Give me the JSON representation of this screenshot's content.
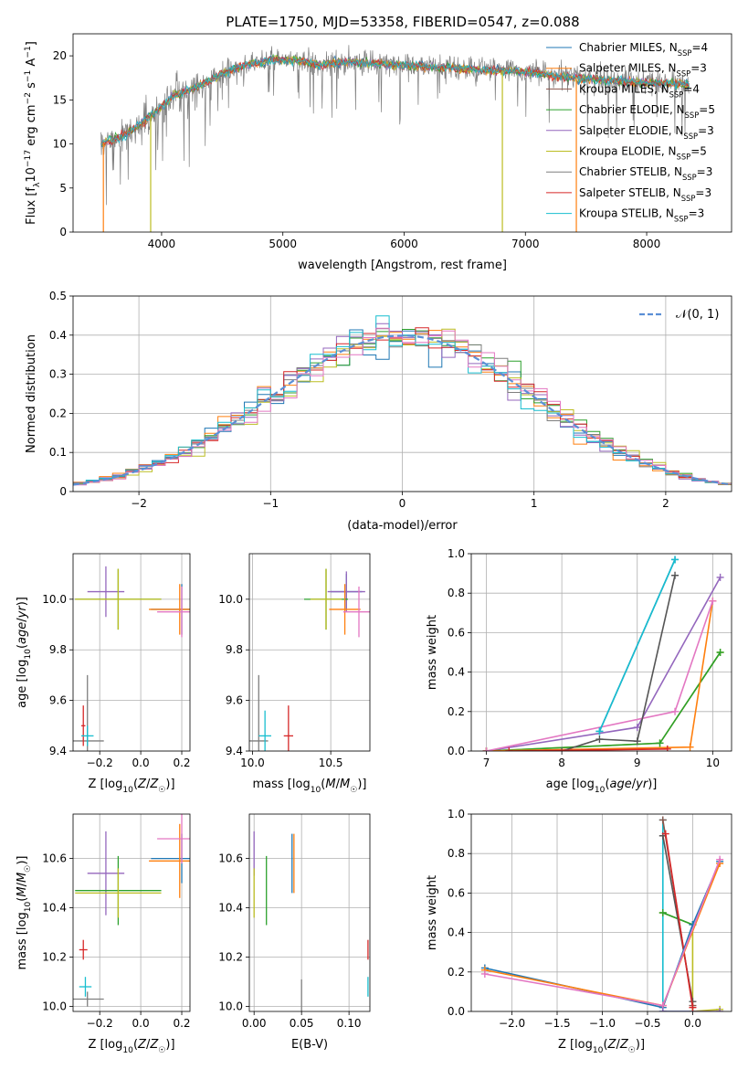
{
  "figure": {
    "title": "PLATE=1750, MJD=53358, FIBERID=0547, z=0.088",
    "colors": [
      "#1f77b4",
      "#ff7f0e",
      "#2ca02c",
      "#d62728",
      "#9467bd",
      "#8c564b",
      "#e377c2",
      "#7f7f7f",
      "#bcbd22",
      "#17becf"
    ]
  },
  "chart_data": [
    {
      "id": "spectrum",
      "type": "line",
      "title": "PLATE=1750, MJD=53358, FIBERID=0547, z=0.088",
      "xlabel": "wavelength [Angstrom, rest frame]",
      "ylabel": "Flux [f_λ 10^-17 erg cm^-2 s^-1 A^-1]",
      "xlim": [
        3270,
        8700
      ],
      "ylim": [
        0,
        22.5
      ],
      "xticks": [
        4000,
        5000,
        6000,
        7000,
        8000
      ],
      "yticks": [
        0,
        5,
        10,
        15,
        20
      ],
      "grid": false,
      "legend_position": "top-right",
      "data_spectrum": {
        "x": [
          3500,
          3700,
          3900,
          4100,
          4300,
          4500,
          4700,
          4900,
          5100,
          5300,
          5500,
          5700,
          5900,
          6100,
          6300,
          6500,
          6700,
          6900,
          7100,
          7300,
          7500,
          7700,
          7900,
          8100,
          8300
        ],
        "y": [
          10,
          11,
          13,
          15.5,
          16.5,
          18,
          19,
          19.5,
          19.5,
          19,
          19.3,
          19.2,
          19,
          18.8,
          18.7,
          18.5,
          18.4,
          18.3,
          18,
          17.6,
          17.4,
          17.2,
          17,
          16.9,
          16.8
        ]
      },
      "model": {
        "x": [
          3500,
          3700,
          3900,
          4100,
          4300,
          4500,
          4700,
          4900,
          5100,
          5300,
          5500,
          5700,
          5900,
          6100,
          6300,
          6500,
          6700,
          6900,
          7100,
          7300,
          7500,
          7700,
          7900,
          8100,
          8300
        ],
        "y": [
          10,
          11,
          13,
          15.5,
          16.5,
          18,
          19,
          19.5,
          19.5,
          19,
          19.3,
          19.2,
          19,
          18.8,
          18.7,
          18.5,
          18.4,
          18.3,
          18,
          17.6,
          17.4,
          17.2,
          17,
          16.9,
          16.8
        ]
      },
      "series": [
        {
          "name": "Chabrier MILES, N_SSP=4",
          "color": "#1f77b4"
        },
        {
          "name": "Salpeter MILES, N_SSP=3",
          "color": "#ff7f0e"
        },
        {
          "name": "Kroupa MILES, N_SSP=4",
          "color": "#8c564b"
        },
        {
          "name": "Chabrier ELODIE, N_SSP=5",
          "color": "#2ca02c"
        },
        {
          "name": "Salpeter ELODIE, N_SSP=3",
          "color": "#9467bd"
        },
        {
          "name": "Kroupa ELODIE, N_SSP=5",
          "color": "#bcbd22"
        },
        {
          "name": "Chabrier STELIB, N_SSP=3",
          "color": "#7f7f7f"
        },
        {
          "name": "Salpeter STELIB, N_SSP=3",
          "color": "#d62728"
        },
        {
          "name": "Kroupa STELIB, N_SSP=3",
          "color": "#17becf"
        }
      ],
      "legend_text": [
        {
          "base": "Chabrier MILES, N",
          "sub": "SSP",
          "rest": "=4"
        },
        {
          "base": "Salpeter MILES, N",
          "sub": "SSP",
          "rest": "=3"
        },
        {
          "base": "Kroupa MILES, N",
          "sub": "SSP",
          "rest": "=4"
        },
        {
          "base": "Chabrier ELODIE, N",
          "sub": "SSP",
          "rest": "=5"
        },
        {
          "base": "Salpeter ELODIE, N",
          "sub": "SSP",
          "rest": "=3"
        },
        {
          "base": "Kroupa ELODIE, N",
          "sub": "SSP",
          "rest": "=5"
        },
        {
          "base": "Chabrier STELIB, N",
          "sub": "SSP",
          "rest": "=3"
        },
        {
          "base": "Salpeter STELIB, N",
          "sub": "SSP",
          "rest": "=3"
        },
        {
          "base": "Kroupa STELIB, N",
          "sub": "SSP",
          "rest": "=3"
        }
      ],
      "drops": [
        {
          "x": 3520,
          "color": "#ff7f0e"
        },
        {
          "x": 3910,
          "color": "#bcbd22"
        },
        {
          "x": 6810,
          "color": "#bcbd22"
        },
        {
          "x": 7420,
          "color": "#ff7f0e"
        }
      ]
    },
    {
      "id": "residuals",
      "type": "bar",
      "xlabel": "(data-model)/error",
      "ylabel": "Normed distribution",
      "xlim": [
        -2.5,
        2.5
      ],
      "ylim": [
        0,
        0.5
      ],
      "xticks": [
        -2,
        -1,
        0,
        1,
        2
      ],
      "yticks": [
        0.0,
        0.1,
        0.2,
        0.3,
        0.4,
        0.5
      ],
      "grid": true,
      "legend_position": "top-right",
      "legend_label": "𝒩(0, 1)",
      "bin_width": 0.1,
      "reference_color": "#5b8fd6",
      "series": [
        {
          "color": "#1f77b4",
          "offset": 0.02
        },
        {
          "color": "#ff7f0e",
          "offset": 0.05
        },
        {
          "color": "#2ca02c",
          "offset": -0.03
        },
        {
          "color": "#9467bd",
          "offset": 0.04
        },
        {
          "color": "#bcbd22",
          "offset": -0.05
        },
        {
          "color": "#7f7f7f",
          "offset": 0.01
        },
        {
          "color": "#d62728",
          "offset": -0.02
        },
        {
          "color": "#17becf",
          "offset": 0.03
        },
        {
          "color": "#e377c2",
          "offset": -0.04
        }
      ]
    },
    {
      "id": "age_vs_Z",
      "type": "scatter",
      "xlabel": "Z [log₁₀(Z/Z☉)]",
      "ylabel": "age [log₁₀(age/yr)]",
      "xlim": [
        -0.33,
        0.24
      ],
      "ylim": [
        9.4,
        10.18
      ],
      "xticks": [
        -0.2,
        0.0,
        0.2
      ],
      "xtick_labels": [
        "−0.2",
        "0.0",
        "0.2"
      ],
      "yticks": [
        9.4,
        9.6,
        9.8,
        10.0
      ],
      "ytick_labels": [
        "9.4",
        "9.6",
        "9.8",
        "10.0"
      ],
      "grid": true,
      "points": [
        {
          "color": "#9467bd",
          "x": -0.17,
          "y": 10.03,
          "xerr": 0.09,
          "yerr": 0.1
        },
        {
          "color": "#2ca02c",
          "x": -0.11,
          "y": 10.0,
          "xerr": 0.21,
          "yerr": 0.12
        },
        {
          "color": "#bcbd22",
          "x": -0.11,
          "y": 10.0,
          "xerr": 0.21,
          "yerr": 0.12
        },
        {
          "color": "#1f77b4",
          "x": 0.2,
          "y": 9.96,
          "xerr": 0.15,
          "yerr": 0.1
        },
        {
          "color": "#ff7f0e",
          "x": 0.19,
          "y": 9.96,
          "xerr": 0.15,
          "yerr": 0.1
        },
        {
          "color": "#e377c2",
          "x": 0.2,
          "y": 9.95,
          "xerr": 0.12,
          "yerr": 0.1
        },
        {
          "color": "#7f7f7f",
          "x": -0.26,
          "y": 9.44,
          "xerr": 0.08,
          "yerr": 0.26
        },
        {
          "color": "#d62728",
          "x": -0.28,
          "y": 9.5,
          "xerr": 0.01,
          "yerr": 0.08
        },
        {
          "color": "#17becf",
          "x": -0.26,
          "y": 9.46,
          "xerr": 0.03,
          "yerr": 0.04
        }
      ]
    },
    {
      "id": "age_vs_mass",
      "type": "scatter",
      "xlabel": "mass [log₁₀(M/M☉)]",
      "xlim": [
        9.98,
        10.75
      ],
      "ylim": [
        9.4,
        10.18
      ],
      "xticks": [
        10.0,
        10.5
      ],
      "xtick_labels": [
        "10.0",
        "10.5"
      ],
      "yticks": [
        9.4,
        9.6,
        9.8,
        10.0
      ],
      "ytick_labels": [
        "9.4",
        "9.6",
        "9.8",
        "10.0"
      ],
      "grid": true,
      "points": [
        {
          "color": "#1f77b4",
          "x": 10.6,
          "y": 10.03,
          "xerr": 0.1,
          "yerr": 0.07
        },
        {
          "color": "#9467bd",
          "x": 10.6,
          "y": 10.03,
          "xerr": 0.12,
          "yerr": 0.08
        },
        {
          "color": "#2ca02c",
          "x": 10.47,
          "y": 10.0,
          "xerr": 0.14,
          "yerr": 0.12
        },
        {
          "color": "#bcbd22",
          "x": 10.47,
          "y": 10.0,
          "xerr": 0.1,
          "yerr": 0.12
        },
        {
          "color": "#ff7f0e",
          "x": 10.59,
          "y": 9.96,
          "xerr": 0.1,
          "yerr": 0.1
        },
        {
          "color": "#e377c2",
          "x": 10.68,
          "y": 9.95,
          "xerr": 0.1,
          "yerr": 0.1
        },
        {
          "color": "#7f7f7f",
          "x": 10.04,
          "y": 9.44,
          "xerr": 0.06,
          "yerr": 0.26
        },
        {
          "color": "#d62728",
          "x": 10.23,
          "y": 9.46,
          "xerr": 0.03,
          "yerr": 0.12
        },
        {
          "color": "#17becf",
          "x": 10.08,
          "y": 9.46,
          "xerr": 0.04,
          "yerr": 0.1
        }
      ]
    },
    {
      "id": "mass_weight_vs_age",
      "type": "line",
      "xlabel": "age [log₁₀(age/yr)]",
      "ylabel": "mass weight",
      "xlim": [
        6.8,
        10.25
      ],
      "ylim": [
        0,
        1
      ],
      "xticks": [
        7,
        8,
        9,
        10
      ],
      "xtick_labels": [
        "7",
        "8",
        "9",
        "10"
      ],
      "yticks": [
        0.0,
        0.2,
        0.4,
        0.6,
        0.8,
        1.0
      ],
      "ytick_labels": [
        "0.0",
        "0.2",
        "0.4",
        "0.6",
        "0.8",
        "1.0"
      ],
      "grid": true,
      "series": [
        {
          "color": "#9467bd",
          "x": [
            7.0,
            9.0,
            10.1
          ],
          "y": [
            0.0,
            0.12,
            0.88
          ]
        },
        {
          "color": "#bcbd22",
          "x": [
            7.0,
            9.3,
            10.1
          ],
          "y": [
            0.0,
            0.04,
            0.5
          ]
        },
        {
          "color": "#2ca02c",
          "x": [
            7.0,
            9.3,
            10.1
          ],
          "y": [
            0.0,
            0.04,
            0.5
          ]
        },
        {
          "color": "#ff7f0e",
          "x": [
            7.0,
            9.7,
            10.0
          ],
          "y": [
            0.0,
            0.02,
            0.76
          ]
        },
        {
          "color": "#e377c2",
          "x": [
            7.0,
            9.5,
            10.0
          ],
          "y": [
            0.0,
            0.2,
            0.76
          ]
        },
        {
          "color": "#1f77b4",
          "x": [
            8.5,
            9.5
          ],
          "y": [
            0.1,
            0.97
          ]
        },
        {
          "color": "#17becf",
          "x": [
            8.5,
            9.5
          ],
          "y": [
            0.1,
            0.97
          ]
        },
        {
          "color": "#555555",
          "x": [
            8.0,
            8.5,
            9.0,
            9.5
          ],
          "y": [
            0.0,
            0.06,
            0.05,
            0.89
          ]
        },
        {
          "color": "#d62728",
          "x": [
            7.3,
            9.4
          ],
          "y": [
            0.0,
            0.01
          ]
        }
      ]
    },
    {
      "id": "mass_vs_Z",
      "type": "scatter",
      "xlabel": "Z [log₁₀(Z/Z☉)]",
      "ylabel": "mass [log₁₀(M/M☉)]",
      "xlim": [
        -0.33,
        0.24
      ],
      "ylim": [
        9.98,
        10.78
      ],
      "xticks": [
        -0.2,
        0.0,
        0.2
      ],
      "xtick_labels": [
        "−0.2",
        "0.0",
        "0.2"
      ],
      "yticks": [
        10.0,
        10.2,
        10.4,
        10.6
      ],
      "ytick_labels": [
        "10.0",
        "10.2",
        "10.4",
        "10.6"
      ],
      "grid": true,
      "points": [
        {
          "color": "#9467bd",
          "x": -0.17,
          "y": 10.54,
          "xerr": 0.09,
          "yerr": 0.17
        },
        {
          "color": "#2ca02c",
          "x": -0.11,
          "y": 10.47,
          "xerr": 0.21,
          "yerr": 0.14
        },
        {
          "color": "#bcbd22",
          "x": -0.11,
          "y": 10.46,
          "xerr": 0.21,
          "yerr": 0.1
        },
        {
          "color": "#1f77b4",
          "x": 0.2,
          "y": 10.6,
          "xerr": 0.15,
          "yerr": 0.1
        },
        {
          "color": "#ff7f0e",
          "x": 0.19,
          "y": 10.59,
          "xerr": 0.15,
          "yerr": 0.15
        },
        {
          "color": "#e377c2",
          "x": 0.2,
          "y": 10.68,
          "xerr": 0.12,
          "yerr": 0.1
        },
        {
          "color": "#7f7f7f",
          "x": -0.26,
          "y": 10.03,
          "xerr": 0.08,
          "yerr": 0.03
        },
        {
          "color": "#d62728",
          "x": -0.28,
          "y": 10.23,
          "xerr": 0.02,
          "yerr": 0.04
        },
        {
          "color": "#17becf",
          "x": -0.27,
          "y": 10.08,
          "xerr": 0.03,
          "yerr": 0.04
        }
      ]
    },
    {
      "id": "mass_vs_ebv",
      "type": "scatter",
      "xlabel": "E(B-V)",
      "xlim": [
        -0.005,
        0.122
      ],
      "ylim": [
        9.98,
        10.78
      ],
      "xticks": [
        0.0,
        0.05,
        0.1
      ],
      "xtick_labels": [
        "0.00",
        "0.05",
        "0.10"
      ],
      "yticks": [
        10.0,
        10.2,
        10.4,
        10.6
      ],
      "ytick_labels": [
        "10.0",
        "10.2",
        "10.4",
        "10.6"
      ],
      "grid": true,
      "points": [
        {
          "color": "#9467bd",
          "x": 0.0,
          "y": 10.62,
          "xerr": 0,
          "yerr": 0.09
        },
        {
          "color": "#bcbd22",
          "x": 0.0,
          "y": 10.46,
          "xerr": 0,
          "yerr": 0.1
        },
        {
          "color": "#2ca02c",
          "x": 0.013,
          "y": 10.47,
          "xerr": 0,
          "yerr": 0.14
        },
        {
          "color": "#1f77b4",
          "x": 0.04,
          "y": 10.58,
          "xerr": 0,
          "yerr": 0.12
        },
        {
          "color": "#ff7f0e",
          "x": 0.042,
          "y": 10.58,
          "xerr": 0,
          "yerr": 0.12
        },
        {
          "color": "#7f7f7f",
          "x": 0.05,
          "y": 10.03,
          "xerr": 0,
          "yerr": 0.08
        },
        {
          "color": "#d62728",
          "x": 0.12,
          "y": 10.23,
          "xerr": 0,
          "yerr": 0.04
        },
        {
          "color": "#17becf",
          "x": 0.12,
          "y": 10.08,
          "xerr": 0,
          "yerr": 0.04
        }
      ]
    },
    {
      "id": "mass_weight_vs_Z",
      "type": "line",
      "xlabel": "Z [log₁₀(Z/Z☉)]",
      "ylabel": "mass weight",
      "xlim": [
        -2.45,
        0.43
      ],
      "ylim": [
        0,
        1
      ],
      "xticks": [
        -2.0,
        -1.5,
        -1.0,
        -0.5,
        0.0
      ],
      "xtick_labels": [
        "−2.0",
        "−1.5",
        "−1.0",
        "−0.5",
        "0.0"
      ],
      "yticks": [
        0.0,
        0.2,
        0.4,
        0.6,
        0.8,
        1.0
      ],
      "ytick_labels": [
        "0.0",
        "0.2",
        "0.4",
        "0.6",
        "0.8",
        "1.0"
      ],
      "grid": true,
      "series": [
        {
          "color": "#17becf",
          "x": [
            -0.33,
            -0.33,
            0.0
          ],
          "y": [
            0.97,
            0.0,
            0.0
          ]
        },
        {
          "color": "#bcbd22",
          "x": [
            -0.33,
            0.0,
            0.0,
            0.3
          ],
          "y": [
            0.5,
            0.44,
            0.0,
            0.01
          ]
        },
        {
          "color": "#2ca02c",
          "x": [
            -0.33,
            0.0
          ],
          "y": [
            0.5,
            0.44
          ]
        },
        {
          "color": "#555555",
          "x": [
            -0.33,
            0.0
          ],
          "y": [
            0.89,
            0.05
          ]
        },
        {
          "color": "#8c564b",
          "x": [
            -0.33,
            0.0
          ],
          "y": [
            0.97,
            0.03
          ]
        },
        {
          "color": "#d62728",
          "x": [
            -0.3,
            0.0
          ],
          "y": [
            0.9,
            0.02
          ]
        },
        {
          "color": "#1f77b4",
          "x": [
            -2.3,
            -0.33,
            0.0,
            0.3
          ],
          "y": [
            0.22,
            0.02,
            0.44,
            0.76
          ]
        },
        {
          "color": "#ff7f0e",
          "x": [
            -2.3,
            -0.33,
            0.3
          ],
          "y": [
            0.21,
            0.03,
            0.75
          ]
        },
        {
          "color": "#e377c2",
          "x": [
            -2.3,
            -0.33,
            0.3
          ],
          "y": [
            0.19,
            0.03,
            0.77
          ]
        },
        {
          "color": "#9467bd",
          "x": [
            -0.33,
            0.3
          ],
          "y": [
            0.0,
            0.0
          ]
        }
      ]
    }
  ]
}
